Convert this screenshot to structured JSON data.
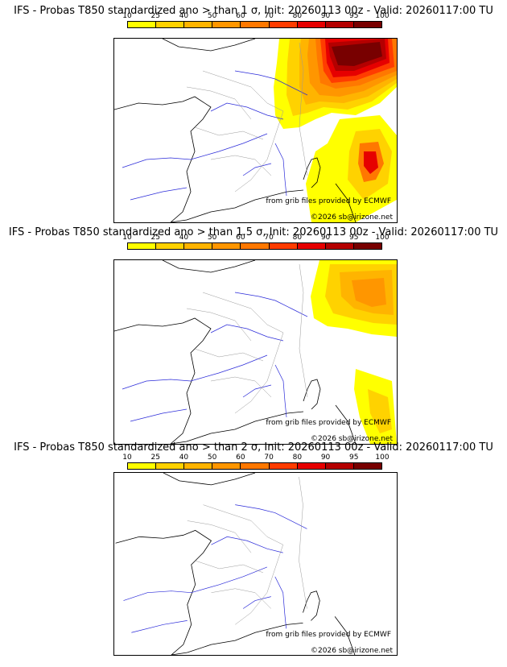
{
  "colorbar": {
    "labels": [
      "10",
      "25",
      "40",
      "50",
      "60",
      "70",
      "80",
      "90",
      "95",
      "100"
    ],
    "colors": [
      "#ffff00",
      "#ffd200",
      "#ffb400",
      "#ff9600",
      "#ff7800",
      "#ff3c00",
      "#e60000",
      "#b40000",
      "#780000"
    ]
  },
  "panels": [
    {
      "title": "IFS - Probas T850  standardized ano > than 1 σ, Init: 20260113 00z - Valid: 20260117:00 TU",
      "credit_source": "from grib files provided by ECMWF",
      "credit_copyright": "©2026 sb@irizone.net"
    },
    {
      "title": "IFS - Probas T850  standardized ano > than 1.5 σ, Init: 20260113 00z - Valid: 20260117:00 TU",
      "credit_source": "from grib files provided by ECMWF",
      "credit_copyright": "©2026 sb@irizone.net"
    },
    {
      "title": "IFS - Probas T850  standardized ano > than 2 σ, Init: 20260113 00z - Valid: 20260117:00 TU",
      "credit_source": "from grib files provided by ECMWF",
      "credit_copyright": "©2026 sb@irizone.net"
    }
  ]
}
